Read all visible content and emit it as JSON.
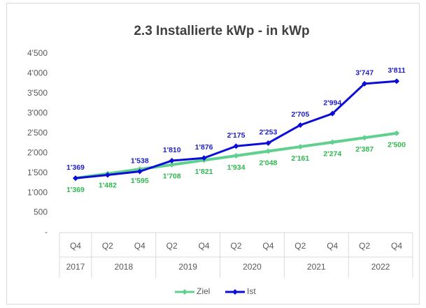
{
  "chart_data": {
    "type": "line",
    "title": "2.3 Installierte kWp - in kWp",
    "categories": [
      "Q4",
      "Q2",
      "Q4",
      "Q2",
      "Q4",
      "Q2",
      "Q4",
      "Q2",
      "Q4",
      "Q2",
      "Q4"
    ],
    "x_groups": [
      {
        "label": "2017",
        "size": 1
      },
      {
        "label": "2018",
        "size": 2
      },
      {
        "label": "2019",
        "size": 2
      },
      {
        "label": "2020",
        "size": 2
      },
      {
        "label": "2021",
        "size": 2
      },
      {
        "label": "2022",
        "size": 2
      }
    ],
    "series": [
      {
        "name": "Ziel",
        "color": "#5fd08e",
        "label_color": "#2eb84f",
        "values": [
          1369,
          1482,
          1595,
          1708,
          1821,
          1934,
          2048,
          2161,
          2274,
          2387,
          2500
        ],
        "value_labels": [
          "1'369",
          "1'482",
          "1'595",
          "1'708",
          "1'821",
          "1'934",
          "2'048",
          "2'161",
          "2'274",
          "2'387",
          "2'500"
        ]
      },
      {
        "name": "Ist",
        "color": "#0c0cd8",
        "label_color": "#1c1cc8",
        "values": [
          1369,
          1450,
          1538,
          1810,
          1876,
          2175,
          2253,
          2705,
          2994,
          3747,
          3811
        ],
        "value_labels": [
          "1'369",
          null,
          "1'538",
          "1'810",
          "1'876",
          "2'175",
          "2'253",
          "2'705",
          "2'994",
          "3'747",
          "3'811"
        ]
      }
    ],
    "ylim": [
      0,
      4500
    ],
    "yticks": [
      {
        "value": 0,
        "label": "-"
      },
      500,
      {
        "value": 1000,
        "label": "1'000"
      },
      {
        "value": 1500,
        "label": "1'500"
      },
      {
        "value": 2000,
        "label": "2'000"
      },
      {
        "value": 2500,
        "label": "2'500"
      },
      {
        "value": 3000,
        "label": "3'000"
      },
      {
        "value": 3500,
        "label": "3'500"
      },
      {
        "value": 4000,
        "label": "4'000"
      },
      {
        "value": 4500,
        "label": "4'500"
      }
    ],
    "grid": false,
    "legend": "bottom"
  }
}
